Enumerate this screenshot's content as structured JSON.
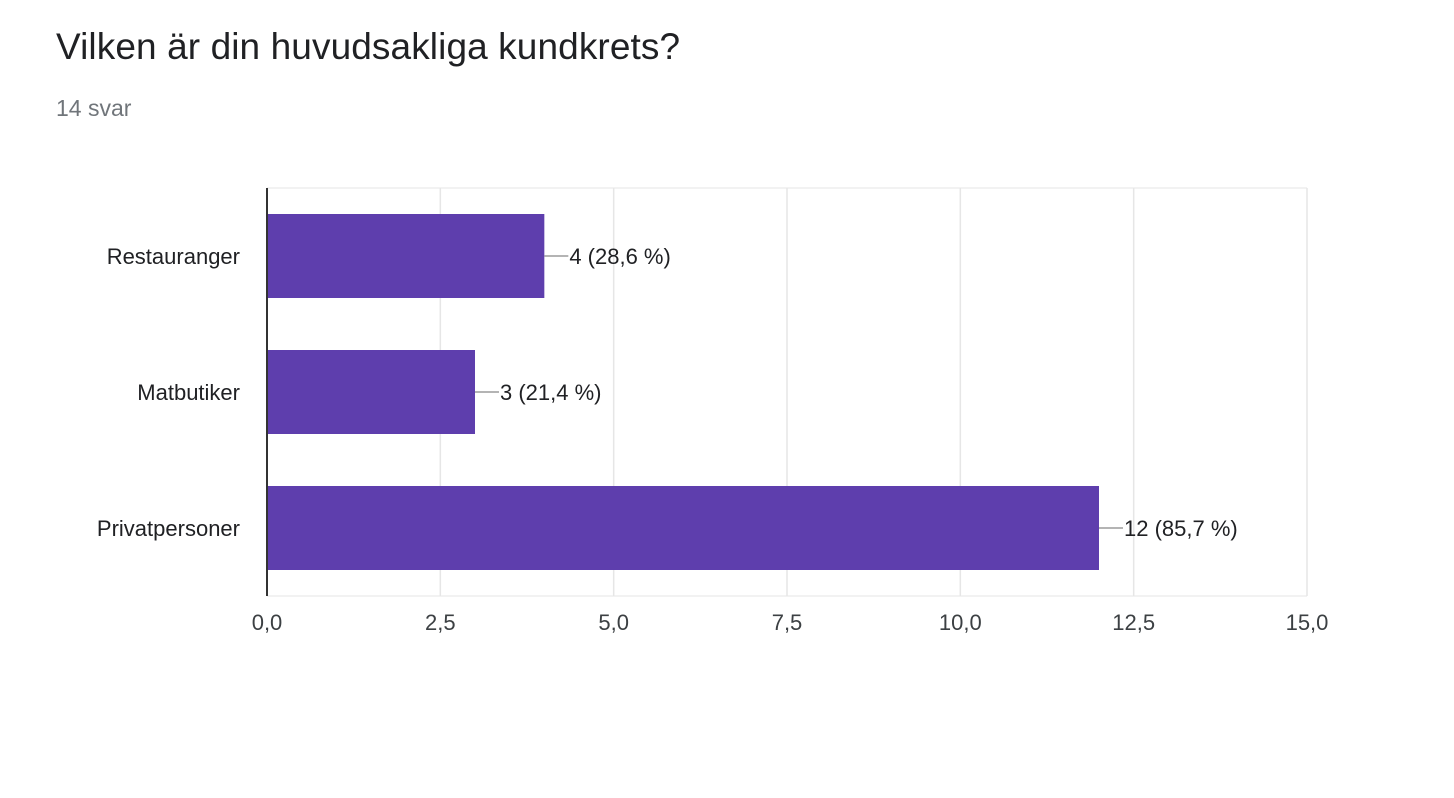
{
  "header": {
    "title": "Vilken är din huvudsakliga kundkrets?",
    "responses": "14 svar"
  },
  "chart_data": {
    "type": "bar",
    "orientation": "horizontal",
    "categories": [
      "Restauranger",
      "Matbutiker",
      "Privatpersoner"
    ],
    "values": [
      4,
      3,
      12
    ],
    "data_labels": [
      "4 (28,6 %)",
      "3 (21,4 %)",
      "12 (85,7 %)"
    ],
    "xlim": [
      0,
      15
    ],
    "x_ticks": [
      0,
      2.5,
      5,
      7.5,
      10,
      12.5,
      15
    ],
    "x_tick_labels": [
      "0,0",
      "2,5",
      "5,0",
      "7,5",
      "10,0",
      "12,5",
      "15,0"
    ],
    "grid": true,
    "legend": "none",
    "colors": {
      "bar": "#5e3ead",
      "grid": "#e6e6e6",
      "axis": "#333333",
      "leader": "#888888"
    }
  }
}
